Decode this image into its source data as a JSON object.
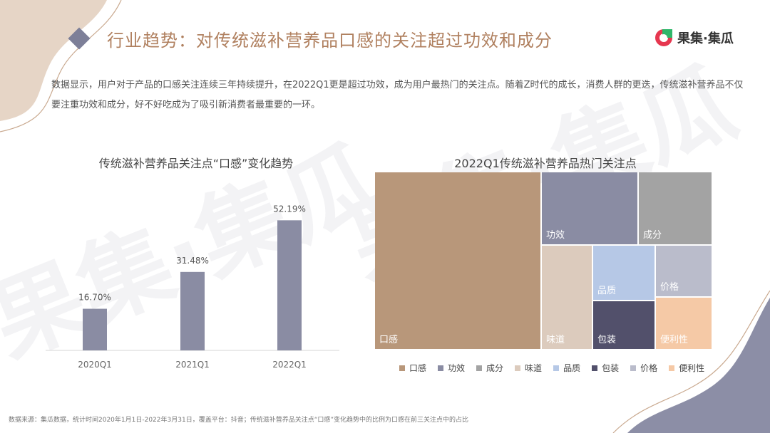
{
  "header": {
    "title": "行业趋势：对传统滋补营养品口感的关注超过功效和成分",
    "logo_text": "果集·集瓜"
  },
  "intro": "数据显示，用户对于产品的口感关注连续三年持续提升，在2022Q1更是超过功效，成为用户最热门的关注点。随着Z时代的成长，消费人群的更迭，传统滋补营养品不仅要注重功效和成分，好不好吃成为了吸引新消费者最重要的一环。",
  "watermark": "果集·集瓜",
  "chart_data": [
    {
      "type": "bar",
      "title": "传统滋补营养品关注点“口感”变化趋势",
      "categories": [
        "2020Q1",
        "2021Q1",
        "2022Q1"
      ],
      "values": [
        16.7,
        31.48,
        52.19
      ],
      "labels": [
        "16.70%",
        "31.48%",
        "52.19%"
      ],
      "ylim": [
        0,
        60
      ],
      "color": "#8a8ca3"
    },
    {
      "type": "treemap",
      "title": "2022Q1传统滋补营养品热门关注点",
      "items": [
        {
          "name": "口感",
          "color": "#b8977a"
        },
        {
          "name": "功效",
          "color": "#8a8ca3"
        },
        {
          "name": "成分",
          "color": "#a3a3a3"
        },
        {
          "name": "味道",
          "color": "#dccbbd"
        },
        {
          "name": "品质",
          "color": "#b6c8e6"
        },
        {
          "name": "包装",
          "color": "#52506b"
        },
        {
          "name": "价格",
          "color": "#babccb"
        },
        {
          "name": "便利性",
          "color": "#f5c9a6"
        }
      ]
    }
  ],
  "footnote": "数据来源：集瓜数据，统计时间2020年1月1日-2022年3月31日，覆盖平台：抖音；传统滋补营养品关注点“口感”变化趋势中的比例为口感在前三关注点中的占比"
}
